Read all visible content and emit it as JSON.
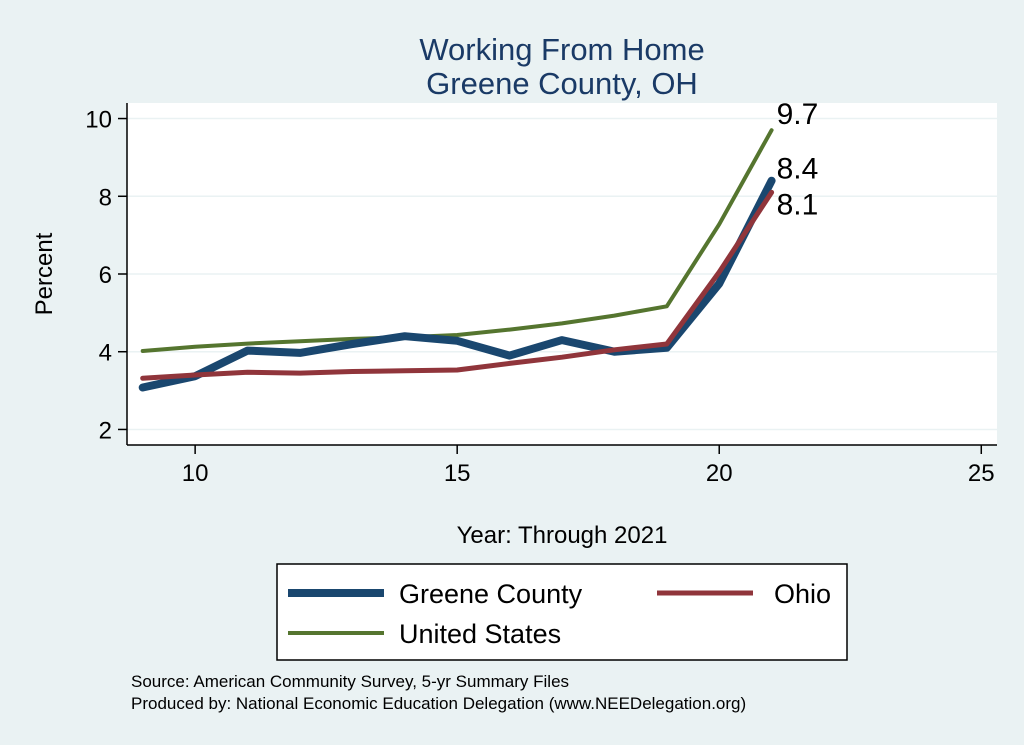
{
  "chart_data": {
    "type": "line",
    "title": "Working From Home",
    "subtitle": "Greene County, OH",
    "xlabel": "Year: Through 2021",
    "ylabel": "Percent",
    "xlim": [
      8.7,
      25.3
    ],
    "ylim": [
      1.6,
      10.4
    ],
    "xticks": [
      10,
      15,
      20,
      25
    ],
    "yticks": [
      2,
      4,
      6,
      8,
      10
    ],
    "grid": true,
    "legend": "bottom",
    "series": [
      {
        "name": "Greene County",
        "color": "#1a476f",
        "x": [
          9,
          10,
          11,
          12,
          13,
          14,
          15,
          16,
          17,
          18,
          19,
          20,
          21
        ],
        "y": [
          3.08,
          3.37,
          4.03,
          3.97,
          4.2,
          4.4,
          4.28,
          3.9,
          4.3,
          4.0,
          4.1,
          5.75,
          8.4
        ],
        "end_label": "8.4"
      },
      {
        "name": "Ohio",
        "color": "#90353b",
        "x": [
          9,
          10,
          11,
          12,
          13,
          14,
          15,
          16,
          17,
          18,
          19,
          20,
          21
        ],
        "y": [
          3.32,
          3.4,
          3.47,
          3.45,
          3.49,
          3.51,
          3.53,
          3.7,
          3.86,
          4.05,
          4.2,
          6.05,
          8.1
        ],
        "end_label": "8.1"
      },
      {
        "name": "United States",
        "color": "#55752f",
        "x": [
          9,
          10,
          11,
          12,
          13,
          14,
          15,
          16,
          17,
          18,
          19,
          20,
          21
        ],
        "y": [
          4.02,
          4.13,
          4.21,
          4.27,
          4.33,
          4.37,
          4.43,
          4.57,
          4.73,
          4.93,
          5.17,
          7.28,
          9.7
        ],
        "end_label": "9.7"
      }
    ],
    "notes": [
      "Source: American Community Survey, 5-yr Summary Files",
      "Produced by: National Economic Education Delegation (www.NEEDelegation.org)"
    ]
  }
}
